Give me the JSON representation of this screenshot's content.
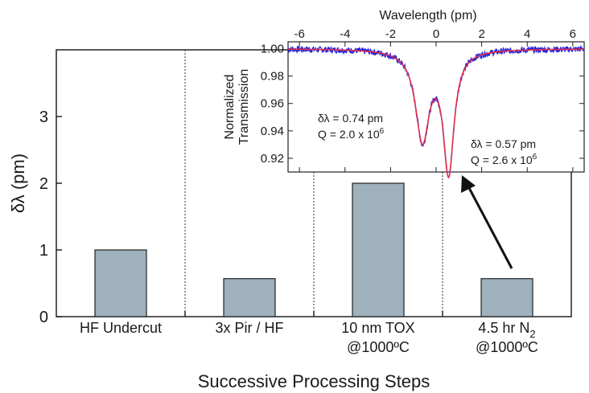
{
  "chart_data": [
    {
      "type": "bar",
      "xlabel": "Successive Processing Steps",
      "ylabel": "δλ (pm)",
      "ylim": [
        0,
        4
      ],
      "yticks": [
        "0",
        "1",
        "2",
        "3"
      ],
      "categories": [
        {
          "line1": "HF Undercut",
          "line2": ""
        },
        {
          "line1": "3x Pir / HF",
          "line2": ""
        },
        {
          "line1": "10 nm TOX",
          "line2": "@1000ºC"
        },
        {
          "line1": "4.5 hr N",
          "sub": "2",
          "line2": "@1000ºC"
        }
      ],
      "values": [
        1.0,
        0.57,
        2.0,
        0.57
      ],
      "grid": false,
      "bar_color": "#9eb1bd"
    },
    {
      "type": "line",
      "xlabel": "Wavelength (pm)",
      "ylabel": [
        "Normalized",
        "Transmission"
      ],
      "xlim": [
        -6.5,
        6.5
      ],
      "ylim": [
        0.91,
        1.005
      ],
      "xticks": [
        "-6",
        "-4",
        "-2",
        "0",
        "2",
        "4",
        "6"
      ],
      "yticks": [
        "0.92",
        "0.94",
        "0.96",
        "0.98",
        "1.00"
      ],
      "series": [
        {
          "role": "measured",
          "color": "#2222dd"
        },
        {
          "role": "fit",
          "color": "#e0304a"
        }
      ],
      "model": {
        "dips": [
          {
            "center": -0.6,
            "depth": 0.065,
            "width": 0.74
          },
          {
            "center": 0.55,
            "depth": 0.088,
            "width": 0.57
          }
        ]
      },
      "annotations": [
        {
          "line1": "δλ = 0.74 pm",
          "line2_prefix": "Q = 2.0 x 10",
          "line2_exp": "6"
        },
        {
          "line1": "δλ = 0.57 pm",
          "line2_prefix": "Q = 2.6 x 10",
          "line2_exp": "6"
        }
      ]
    }
  ]
}
